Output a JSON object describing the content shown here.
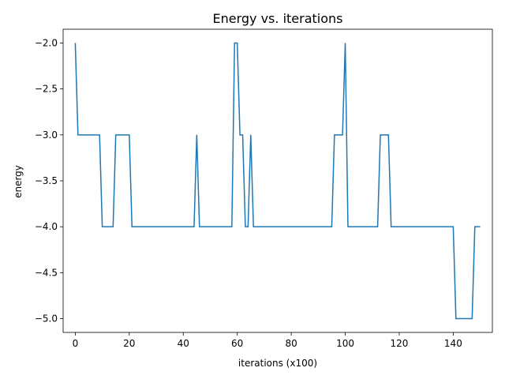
{
  "chart_data": {
    "type": "line",
    "title": "Energy vs. iterations",
    "xlabel": "iterations (x100)",
    "ylabel": "energy",
    "xlim": [
      -4.5,
      154.5
    ],
    "ylim": [
      -5.15,
      -1.85
    ],
    "xticks": [
      0,
      20,
      40,
      60,
      80,
      100,
      120,
      140
    ],
    "yticks": [
      -2.0,
      -2.5,
      -3.0,
      -3.5,
      -4.0,
      -4.5,
      -5.0
    ],
    "xtick_labels": [
      "0",
      "20",
      "40",
      "60",
      "80",
      "100",
      "120",
      "140"
    ],
    "ytick_labels": [
      "−2.0",
      "−2.5",
      "−3.0",
      "−3.5",
      "−4.0",
      "−4.5",
      "−5.0"
    ],
    "grid": false,
    "line_color": "#1f77b4",
    "series": [
      {
        "x": [
          0,
          1,
          9,
          10,
          14,
          15,
          20,
          21,
          44,
          45,
          46,
          58,
          59,
          60,
          61,
          62,
          63,
          64,
          65,
          66,
          95,
          96,
          99,
          100,
          101,
          112,
          113,
          116,
          117,
          140,
          141,
          147,
          148,
          150
        ],
        "values": [
          -2,
          -3,
          -3,
          -4,
          -4,
          -3,
          -3,
          -4,
          -4,
          -3,
          -4,
          -4,
          -2,
          -2,
          -3,
          -3,
          -4,
          -4,
          -3,
          -4,
          -4,
          -3,
          -3,
          -2,
          -4,
          -4,
          -3,
          -3,
          -4,
          -4,
          -5,
          -5,
          -4,
          -4
        ]
      }
    ]
  }
}
